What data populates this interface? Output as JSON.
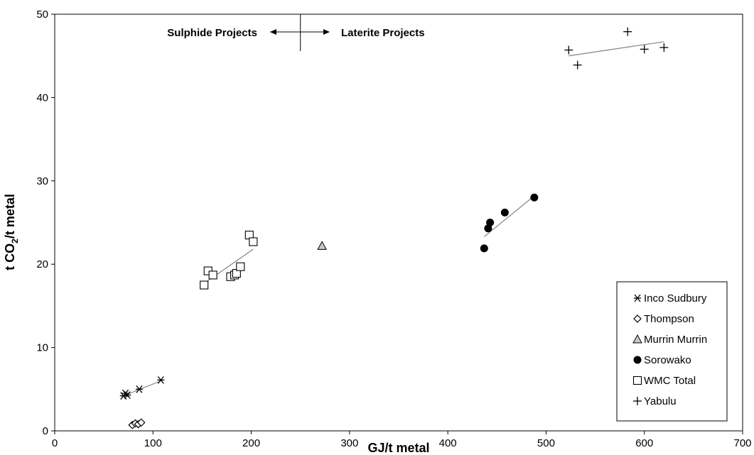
{
  "chart_data": {
    "type": "scatter",
    "xlabel": "GJ/t metal",
    "ylabel": {
      "prefix": "t CO",
      "sub": "2",
      "suffix": "/t metal"
    },
    "xlim": [
      0,
      700
    ],
    "ylim": [
      0,
      50
    ],
    "xticks": [
      0,
      100,
      200,
      300,
      400,
      500,
      600,
      700
    ],
    "yticks": [
      0,
      10,
      20,
      30,
      40,
      50
    ],
    "grid": false,
    "legend_position": "bottom-right",
    "annotations": {
      "left": "Sulphide Projects",
      "right": "Laterite Projects",
      "divider_x": 250
    },
    "series": [
      {
        "name": "Inco Sudbury",
        "marker": "asterisk",
        "points": [
          [
            70,
            4.2
          ],
          [
            72,
            4.5
          ],
          [
            74,
            4.3
          ],
          [
            86,
            5.0
          ],
          [
            108,
            6.1
          ]
        ],
        "trend": [
          [
            70,
            4.2
          ],
          [
            108,
            6.0
          ]
        ]
      },
      {
        "name": "Thompson",
        "marker": "diamond",
        "points": [
          [
            79,
            0.7
          ],
          [
            82,
            0.9
          ],
          [
            85,
            0.8
          ],
          [
            88,
            1.0
          ]
        ],
        "trend": [
          [
            79,
            0.7
          ],
          [
            88,
            1.0
          ]
        ]
      },
      {
        "name": "Murrin Murrin",
        "marker": "triangle",
        "points": [
          [
            272,
            22.2
          ]
        ],
        "trend": []
      },
      {
        "name": "Sorowako",
        "marker": "circle",
        "points": [
          [
            437,
            21.9
          ],
          [
            441,
            24.3
          ],
          [
            443,
            25.0
          ],
          [
            458,
            26.2
          ],
          [
            488,
            28.0
          ]
        ],
        "trend": [
          [
            437,
            23.3
          ],
          [
            488,
            28.2
          ]
        ]
      },
      {
        "name": "WMC Total",
        "marker": "square",
        "points": [
          [
            152,
            17.5
          ],
          [
            156,
            19.2
          ],
          [
            161,
            18.7
          ],
          [
            179,
            18.5
          ],
          [
            183,
            18.7
          ],
          [
            185,
            18.9
          ],
          [
            189,
            19.7
          ],
          [
            198,
            23.5
          ],
          [
            202,
            22.7
          ]
        ],
        "trend": [
          [
            152,
            17.7
          ],
          [
            202,
            21.8
          ]
        ]
      },
      {
        "name": "Yabulu",
        "marker": "plus",
        "points": [
          [
            523,
            45.7
          ],
          [
            532,
            43.9
          ],
          [
            583,
            47.9
          ],
          [
            600,
            45.8
          ],
          [
            620,
            46.0
          ]
        ],
        "trend": [
          [
            523,
            45.0
          ],
          [
            620,
            46.7
          ]
        ]
      }
    ]
  }
}
